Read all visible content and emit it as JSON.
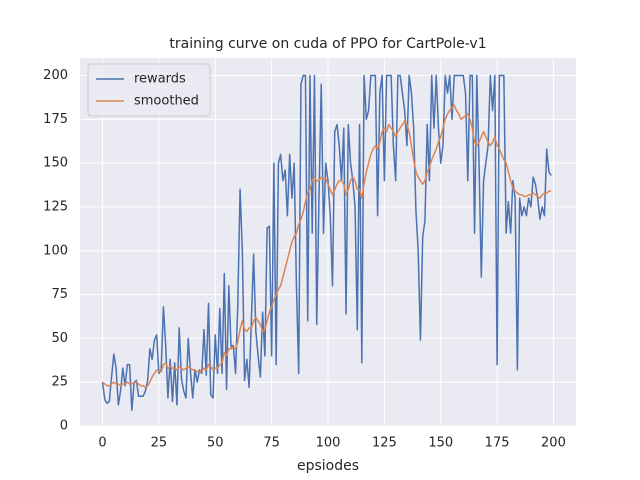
{
  "chart_data": {
    "type": "line",
    "title": "training curve on cuda of PPO for CartPole-v1",
    "x_label": "epsiodes",
    "x": [
      0,
      1,
      2,
      3,
      4,
      5,
      6,
      7,
      8,
      9,
      10,
      11,
      12,
      13,
      14,
      15,
      16,
      17,
      18,
      19,
      20,
      21,
      22,
      23,
      24,
      25,
      26,
      27,
      28,
      29,
      30,
      31,
      32,
      33,
      34,
      35,
      36,
      37,
      38,
      39,
      40,
      41,
      42,
      43,
      44,
      45,
      46,
      47,
      48,
      49,
      50,
      51,
      52,
      53,
      54,
      55,
      56,
      57,
      58,
      59,
      60,
      61,
      62,
      63,
      64,
      65,
      66,
      67,
      68,
      69,
      70,
      71,
      72,
      73,
      74,
      75,
      76,
      77,
      78,
      79,
      80,
      81,
      82,
      83,
      84,
      85,
      86,
      87,
      88,
      89,
      90,
      91,
      92,
      93,
      94,
      95,
      96,
      97,
      98,
      99,
      100,
      101,
      102,
      103,
      104,
      105,
      106,
      107,
      108,
      109,
      110,
      111,
      112,
      113,
      114,
      115,
      116,
      117,
      118,
      119,
      120,
      121,
      122,
      123,
      124,
      125,
      126,
      127,
      128,
      129,
      130,
      131,
      132,
      133,
      134,
      135,
      136,
      137,
      138,
      139,
      140,
      141,
      142,
      143,
      144,
      145,
      146,
      147,
      148,
      149,
      150,
      151,
      152,
      153,
      154,
      155,
      156,
      157,
      158,
      159,
      160,
      161,
      162,
      163,
      164,
      165,
      166,
      167,
      168,
      169,
      170,
      171,
      172,
      173,
      174,
      175,
      176,
      177,
      178,
      179,
      180,
      181,
      182,
      183,
      184,
      185,
      186,
      187,
      188,
      189,
      190,
      191,
      192,
      193,
      194,
      195,
      196,
      197,
      198,
      199
    ],
    "series": [
      {
        "name": "rewards",
        "color": "#4c72b0",
        "values": [
          25,
          15,
          13,
          14,
          28,
          41,
          33,
          12,
          20,
          33,
          23,
          35,
          35,
          9,
          25,
          26,
          17,
          17,
          17,
          20,
          26,
          44,
          38,
          49,
          52,
          30,
          32,
          68,
          46,
          16,
          38,
          14,
          36,
          12,
          56,
          27,
          20,
          16,
          50,
          31,
          16,
          32,
          25,
          32,
          30,
          55,
          29,
          70,
          18,
          16,
          52,
          30,
          67,
          30,
          87,
          21,
          80,
          45,
          46,
          30,
          70,
          135,
          100,
          26,
          38,
          22,
          60,
          98,
          54,
          40,
          28,
          65,
          40,
          113,
          114,
          40,
          150,
          35,
          150,
          155,
          140,
          146,
          120,
          155,
          130,
          150,
          80,
          30,
          195,
          200,
          200,
          60,
          200,
          110,
          200,
          58,
          130,
          195,
          110,
          150,
          140,
          120,
          80,
          168,
          172,
          160,
          140,
          170,
          64,
          172,
          150,
          140,
          125,
          55,
          172,
          36,
          200,
          175,
          180,
          200,
          200,
          200,
          120,
          190,
          200,
          140,
          200,
          200,
          200,
          160,
          140,
          200,
          200,
          190,
          180,
          160,
          200,
          190,
          170,
          123,
          100,
          49,
          108,
          117,
          172,
          140,
          200,
          170,
          200,
          170,
          150,
          160,
          200,
          190,
          200,
          175,
          200,
          200,
          200,
          200,
          200,
          190,
          140,
          200,
          200,
          110,
          200,
          150,
          85,
          140,
          150,
          160,
          200,
          180,
          200,
          35,
          200,
          200,
          200,
          110,
          128,
          110,
          140,
          130,
          32,
          130,
          120,
          125,
          120,
          130,
          125,
          142,
          138,
          130,
          118,
          125,
          120,
          158,
          145,
          143
        ]
      },
      {
        "name": "smoothed",
        "color": "#dd8452",
        "values": [
          25,
          24,
          23,
          23,
          24,
          25,
          24,
          24,
          23,
          24,
          24,
          25,
          24,
          24,
          25,
          25,
          24,
          23,
          23,
          22,
          23,
          25,
          28,
          30,
          32,
          31,
          31,
          35,
          36,
          33,
          34,
          33,
          33,
          32,
          34,
          33,
          32,
          33,
          34,
          33,
          32,
          32,
          31,
          31,
          31,
          33,
          32,
          35,
          34,
          32,
          33,
          33,
          35,
          36,
          42,
          40,
          44,
          44,
          45,
          44,
          48,
          55,
          60,
          55,
          54,
          56,
          56,
          60,
          62,
          60,
          58,
          54,
          55,
          60,
          65,
          68,
          72,
          75,
          78,
          80,
          85,
          90,
          95,
          100,
          105,
          108,
          110,
          115,
          118,
          122,
          128,
          133,
          135,
          140,
          142,
          140,
          140,
          142,
          141,
          141,
          138,
          135,
          132,
          135,
          138,
          140,
          140,
          138,
          132,
          135,
          140,
          142,
          140,
          135,
          135,
          130,
          138,
          145,
          150,
          155,
          158,
          160,
          158,
          162,
          168,
          170,
          168,
          172,
          170,
          168,
          165,
          168,
          170,
          172,
          174,
          172,
          168,
          160,
          152,
          145,
          142,
          140,
          138,
          140,
          145,
          148,
          152,
          155,
          158,
          162,
          165,
          170,
          175,
          178,
          180,
          182,
          183,
          180,
          178,
          175,
          176,
          177,
          178,
          175,
          170,
          162,
          160,
          162,
          165,
          168,
          165,
          162,
          160,
          162,
          165,
          160,
          158,
          155,
          152,
          150,
          145,
          140,
          136,
          134,
          133,
          132,
          132,
          131,
          131,
          132,
          132,
          133,
          132,
          131,
          130,
          132,
          133,
          133,
          134,
          134
        ]
      }
    ],
    "xlim": [
      -10,
      210
    ],
    "ylim": [
      0,
      210
    ],
    "xticks": [
      0,
      25,
      50,
      75,
      100,
      125,
      150,
      175,
      200
    ],
    "yticks": [
      0,
      25,
      50,
      75,
      100,
      125,
      150,
      175,
      200
    ],
    "grid": true,
    "legend": "upper-left"
  }
}
